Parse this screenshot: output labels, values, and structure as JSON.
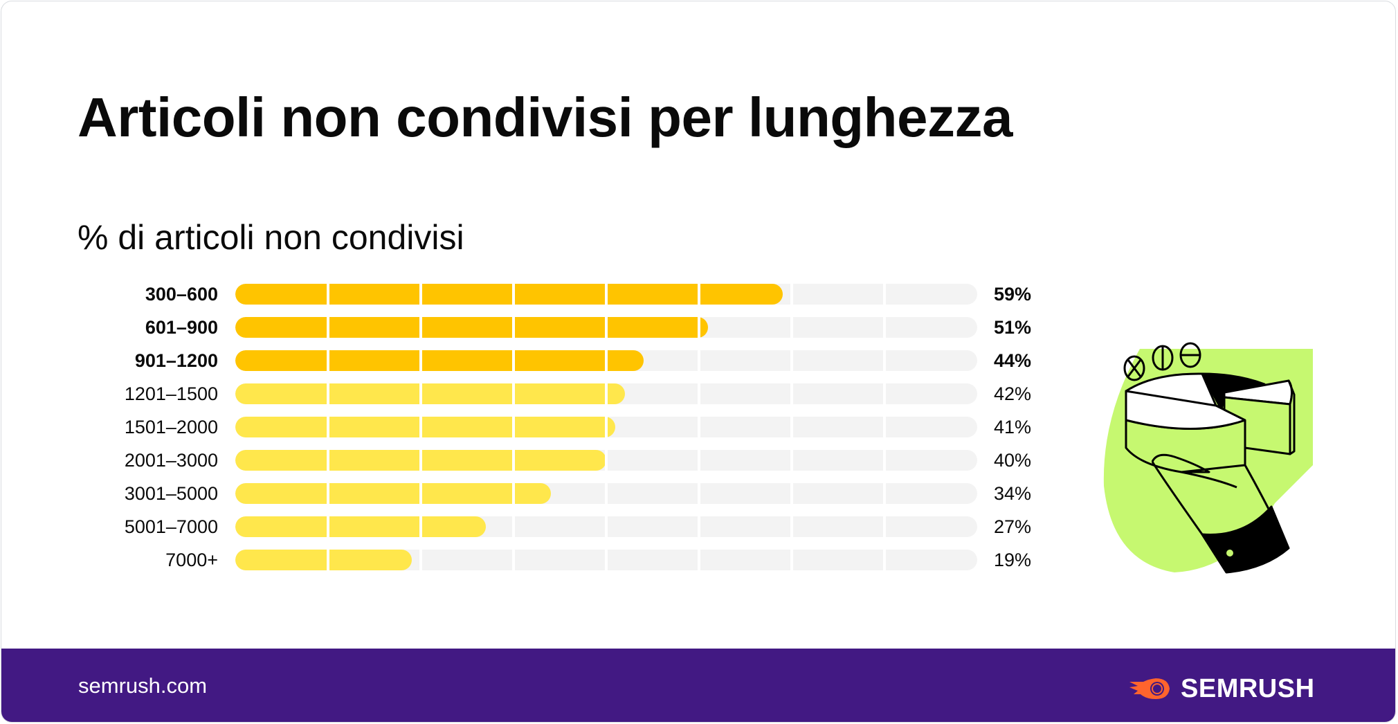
{
  "header": {
    "title": "Articoli non condivisi per lunghezza",
    "subtitle": "% di articoli non condivisi"
  },
  "colors": {
    "highlight_bar": "#ffc400",
    "regular_bar": "#ffe74c",
    "track": "#f3f3f3",
    "footer_bg": "#421983",
    "illustration_green": "#c6f870",
    "logo_orange": "#ff642d"
  },
  "chart_data": {
    "type": "bar",
    "orientation": "horizontal",
    "title": "Articoli non condivisi per lunghezza",
    "subtitle": "% di articoli non condivisi",
    "xlabel": "",
    "ylabel": "",
    "xlim": [
      0,
      80
    ],
    "grid": true,
    "grid_step": 10,
    "categories": [
      "300–600",
      "601–900",
      "901–1200",
      "1201–1500",
      "1501–2000",
      "2001–3000",
      "3001–5000",
      "5001–7000",
      "7000+"
    ],
    "values": [
      59,
      51,
      44,
      42,
      41,
      40,
      34,
      27,
      19
    ],
    "value_labels": [
      "59%",
      "51%",
      "44%",
      "42%",
      "41%",
      "40%",
      "34%",
      "27%",
      "19%"
    ],
    "highlighted": [
      true,
      true,
      true,
      false,
      false,
      false,
      false,
      false,
      false
    ]
  },
  "illustration": {
    "icon": "hand-holding-pie-chart-icon",
    "symbols": [
      "circle-x-icon",
      "circle-vertical-line-icon",
      "circle-horizontal-line-icon"
    ]
  },
  "footer": {
    "url": "semrush.com",
    "logo_text": "SEMRUSH",
    "logo_icon": "semrush-fireball-icon"
  }
}
